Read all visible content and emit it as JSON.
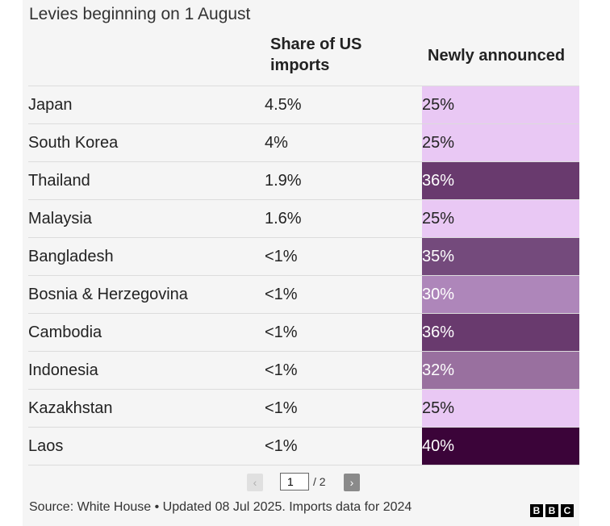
{
  "chart_data": {
    "type": "table",
    "title": "Levies beginning on 1 August",
    "columns": [
      "",
      "Share of US imports",
      "Newly announced"
    ],
    "rows": [
      {
        "country": "Japan",
        "share": "4.5%",
        "rate": "25%",
        "color": "#e9c8f4",
        "text_color": "#222222"
      },
      {
        "country": "South Korea",
        "share": "4%",
        "rate": "25%",
        "color": "#e9c8f4",
        "text_color": "#222222"
      },
      {
        "country": "Thailand",
        "share": "1.9%",
        "rate": "36%",
        "color": "#693a6e",
        "text_color": "#ffffff"
      },
      {
        "country": "Malaysia",
        "share": "1.6%",
        "rate": "25%",
        "color": "#e9c8f4",
        "text_color": "#222222"
      },
      {
        "country": "Bangladesh",
        "share": "<1%",
        "rate": "35%",
        "color": "#744a7c",
        "text_color": "#ffffff"
      },
      {
        "country": "Bosnia & Herzegovina",
        "share": "<1%",
        "rate": "30%",
        "color": "#ae86ba",
        "text_color": "#ffffff"
      },
      {
        "country": "Cambodia",
        "share": "<1%",
        "rate": "36%",
        "color": "#693a6e",
        "text_color": "#ffffff"
      },
      {
        "country": "Indonesia",
        "share": "<1%",
        "rate": "32%",
        "color": "#99709f",
        "text_color": "#ffffff"
      },
      {
        "country": "Kazakhstan",
        "share": "<1%",
        "rate": "25%",
        "color": "#e9c8f4",
        "text_color": "#222222"
      },
      {
        "country": "Laos",
        "share": "<1%",
        "rate": "40%",
        "color": "#3b0439",
        "text_color": "#ffffff"
      }
    ],
    "page": "1",
    "total_pages": "/ 2",
    "source": "Source: White House • Updated 08 Jul 2025. Imports data for 2024"
  },
  "icons": {
    "prev": "chevron-left-icon",
    "next": "chevron-right-icon",
    "prev_glyph": "‹",
    "next_glyph": "›"
  },
  "logo": [
    "B",
    "B",
    "C"
  ]
}
